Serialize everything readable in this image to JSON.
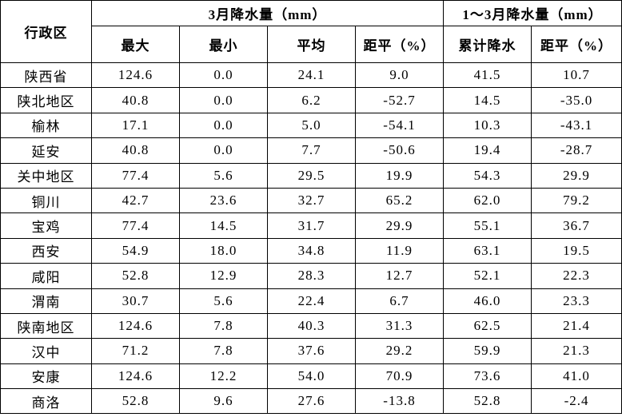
{
  "table": {
    "header": {
      "region": "行政区",
      "group1": "3月降水量（mm）",
      "group2": "1～3月降水量（mm）",
      "columns": [
        "最大",
        "最小",
        "平均",
        "距平（%）",
        "累计降水",
        "距平（%）"
      ]
    },
    "rows": [
      [
        "陕西省",
        "124.6",
        "0.0",
        "24.1",
        "9.0",
        "41.5",
        "10.7"
      ],
      [
        "陕北地区",
        "40.8",
        "0.0",
        "6.2",
        "-52.7",
        "14.5",
        "-35.0"
      ],
      [
        "榆林",
        "17.1",
        "0.0",
        "5.0",
        "-54.1",
        "10.3",
        "-43.1"
      ],
      [
        "延安",
        "40.8",
        "0.0",
        "7.7",
        "-50.6",
        "19.4",
        "-28.7"
      ],
      [
        "关中地区",
        "77.4",
        "5.6",
        "29.5",
        "19.9",
        "54.3",
        "29.9"
      ],
      [
        "铜川",
        "42.7",
        "23.6",
        "32.7",
        "65.2",
        "62.0",
        "79.2"
      ],
      [
        "宝鸡",
        "77.4",
        "14.5",
        "31.7",
        "29.9",
        "55.1",
        "36.7"
      ],
      [
        "西安",
        "54.9",
        "18.0",
        "34.8",
        "11.9",
        "63.1",
        "19.5"
      ],
      [
        "咸阳",
        "52.8",
        "12.9",
        "28.3",
        "12.7",
        "52.1",
        "22.3"
      ],
      [
        "渭南",
        "30.7",
        "5.6",
        "22.4",
        "6.7",
        "46.0",
        "23.3"
      ],
      [
        "陕南地区",
        "124.6",
        "7.8",
        "40.3",
        "31.3",
        "62.5",
        "21.4"
      ],
      [
        "汉中",
        "71.2",
        "7.8",
        "37.6",
        "29.2",
        "59.9",
        "21.3"
      ],
      [
        "安康",
        "124.6",
        "12.2",
        "54.0",
        "70.9",
        "73.6",
        "41.0"
      ],
      [
        "商洛",
        "52.8",
        "9.6",
        "27.6",
        "-13.8",
        "52.8",
        "-2.4"
      ]
    ]
  }
}
